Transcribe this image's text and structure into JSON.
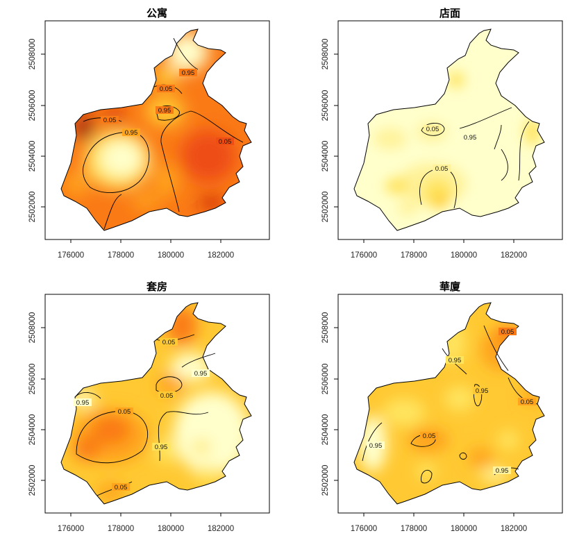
{
  "colors": {
    "ramp": [
      "#FFFFCC",
      "#FFF29A",
      "#FFE45E",
      "#FFC933",
      "#FFA41C",
      "#FA7A16",
      "#EE4E14",
      "#C81E10",
      "#8E0A0A"
    ]
  },
  "x_ticks": [
    "176000",
    "178000",
    "180000",
    "182000"
  ],
  "y_ticks": [
    "2502000",
    "2504000",
    "2506000",
    "2508000"
  ],
  "panels": [
    {
      "title": "公寓",
      "contour_labels": [
        "0.95",
        "0.05",
        "0.95",
        "0.05",
        "0.95",
        "0.05"
      ]
    },
    {
      "title": "店面",
      "contour_labels": [
        "0.05",
        "0.95",
        "0.05"
      ]
    },
    {
      "title": "套房",
      "contour_labels": [
        "0.05",
        "0.95",
        "0.95",
        "0.05",
        "0.05",
        "0.95",
        "0.05"
      ]
    },
    {
      "title": "華廈",
      "contour_labels": [
        "0.05",
        "0.95",
        "0.95",
        "0.05",
        "0.95",
        "0.05",
        "0.95"
      ]
    }
  ]
}
